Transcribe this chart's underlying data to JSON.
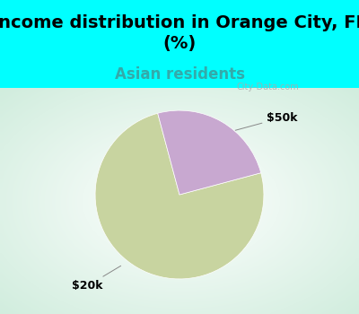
{
  "title": "Income distribution in Orange City, FL\n(%)",
  "subtitle": "Asian residents",
  "title_fontsize": 14,
  "subtitle_fontsize": 12,
  "title_color": "#000000",
  "subtitle_color": "#33aaaa",
  "background_color_top": "#00ffff",
  "slices": [
    75.0,
    25.0
  ],
  "slice_colors": [
    "#c8d4a0",
    "#c8a8d0"
  ],
  "labels": [
    "$20k",
    "$50k"
  ],
  "startangle": 105,
  "watermark": "City-Data.com",
  "fig_width": 4.0,
  "fig_height": 3.5,
  "dpi": 100,
  "chart_bg_color": "#e0f0e8"
}
